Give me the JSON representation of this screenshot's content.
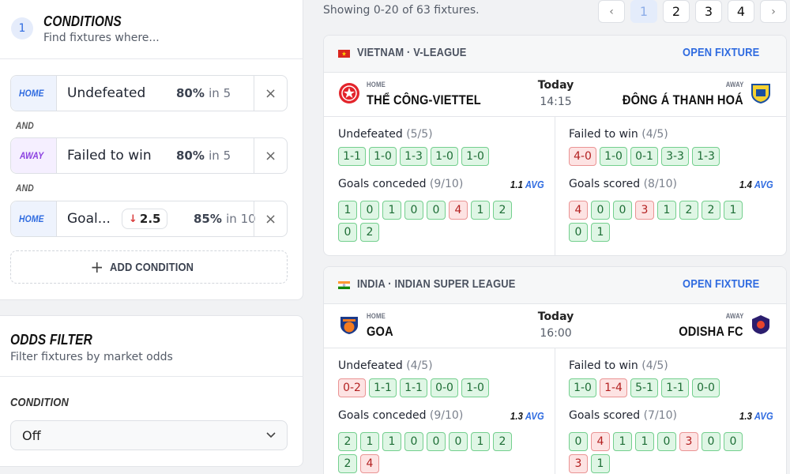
{
  "conditions": {
    "step": "1",
    "title": "CONDITIONS",
    "subtitle": "Find fixtures where...",
    "rows": [
      {
        "side": "HOME",
        "label": "Undefeated",
        "pct": "80%",
        "in": "in 5"
      },
      {
        "side": "AWAY",
        "label": "Failed to win",
        "pct": "80%",
        "in": "in 5"
      },
      {
        "side": "HOME",
        "label": "Goal...",
        "avg": "2.5",
        "pct": "85%",
        "in": "in 10"
      }
    ],
    "and_label": "AND",
    "add_condition": "ADD CONDITION",
    "remove": "×"
  },
  "odds": {
    "title": "ODDS FILTER",
    "subtitle": "Filter fixtures by market odds",
    "condition_label": "CONDITION",
    "select_value": "Off"
  },
  "results": {
    "showing": "Showing 0-20 of 63 fixtures.",
    "pages": [
      "1",
      "2",
      "3",
      "4"
    ],
    "prev": "‹",
    "next": "›"
  },
  "fixtures": [
    {
      "league": "VIETNAM · V-LEAGUE",
      "open": "OPEN FIXTURE",
      "home_label": "HOME",
      "home": "THỂ CÔNG-VIETTEL",
      "away_label": "AWAY",
      "away": "ĐÔNG Á THANH HOÁ",
      "when": "Today",
      "time": "14:15",
      "home_stats": {
        "s1_label": "Undefeated",
        "s1_count": "(5/5)",
        "s1_chips": [
          [
            "1-1",
            "g"
          ],
          [
            "1-0",
            "g"
          ],
          [
            "1-3",
            "g"
          ],
          [
            "1-0",
            "g"
          ],
          [
            "1-0",
            "g"
          ]
        ],
        "s2_label": "Goals conceded",
        "s2_count": "(9/10)",
        "s2_avg": "1.1",
        "avg_word": "AVG",
        "s2_chips": [
          [
            "1",
            "g"
          ],
          [
            "0",
            "g"
          ],
          [
            "1",
            "g"
          ],
          [
            "0",
            "g"
          ],
          [
            "0",
            "g"
          ],
          [
            "4",
            "r"
          ],
          [
            "1",
            "g"
          ],
          [
            "2",
            "g"
          ],
          [
            "0",
            "g"
          ],
          [
            "2",
            "g"
          ]
        ]
      },
      "away_stats": {
        "s1_label": "Failed to win",
        "s1_count": "(4/5)",
        "s1_chips": [
          [
            "4-0",
            "r"
          ],
          [
            "1-0",
            "g"
          ],
          [
            "0-1",
            "g"
          ],
          [
            "3-3",
            "g"
          ],
          [
            "1-3",
            "g"
          ]
        ],
        "s2_label": "Goals scored",
        "s2_count": "(8/10)",
        "s2_avg": "1.4",
        "avg_word": "AVG",
        "s2_chips": [
          [
            "4",
            "r"
          ],
          [
            "0",
            "g"
          ],
          [
            "0",
            "g"
          ],
          [
            "3",
            "r"
          ],
          [
            "1",
            "g"
          ],
          [
            "2",
            "g"
          ],
          [
            "2",
            "g"
          ],
          [
            "1",
            "g"
          ],
          [
            "0",
            "g"
          ],
          [
            "1",
            "g"
          ]
        ]
      }
    },
    {
      "league": "INDIA · INDIAN SUPER LEAGUE",
      "open": "OPEN FIXTURE",
      "home_label": "HOME",
      "home": "GOA",
      "away_label": "AWAY",
      "away": "ODISHA FC",
      "when": "Today",
      "time": "16:00",
      "home_stats": {
        "s1_label": "Undefeated",
        "s1_count": "(4/5)",
        "s1_chips": [
          [
            "0-2",
            "r"
          ],
          [
            "1-1",
            "g"
          ],
          [
            "1-1",
            "g"
          ],
          [
            "0-0",
            "g"
          ],
          [
            "1-0",
            "g"
          ]
        ],
        "s2_label": "Goals conceded",
        "s2_count": "(9/10)",
        "s2_avg": "1.3",
        "avg_word": "AVG",
        "s2_chips": [
          [
            "2",
            "g"
          ],
          [
            "1",
            "g"
          ],
          [
            "1",
            "g"
          ],
          [
            "0",
            "g"
          ],
          [
            "0",
            "g"
          ],
          [
            "0",
            "g"
          ],
          [
            "1",
            "g"
          ],
          [
            "2",
            "g"
          ],
          [
            "2",
            "g"
          ],
          [
            "4",
            "r"
          ]
        ]
      },
      "away_stats": {
        "s1_label": "Failed to win",
        "s1_count": "(4/5)",
        "s1_chips": [
          [
            "1-0",
            "g"
          ],
          [
            "1-4",
            "r"
          ],
          [
            "5-1",
            "g"
          ],
          [
            "1-1",
            "g"
          ],
          [
            "0-0",
            "g"
          ]
        ],
        "s2_label": "Goals scored",
        "s2_count": "(7/10)",
        "s2_avg": "1.3",
        "avg_word": "AVG",
        "s2_chips": [
          [
            "0",
            "g"
          ],
          [
            "4",
            "r"
          ],
          [
            "1",
            "g"
          ],
          [
            "1",
            "g"
          ],
          [
            "0",
            "g"
          ],
          [
            "3",
            "r"
          ],
          [
            "0",
            "g"
          ],
          [
            "0",
            "g"
          ],
          [
            "3",
            "r"
          ],
          [
            "1",
            "g"
          ]
        ]
      }
    }
  ],
  "colors": {
    "accent": "#2f6be0",
    "good": "#dff6e5",
    "bad": "#fde3e3"
  }
}
